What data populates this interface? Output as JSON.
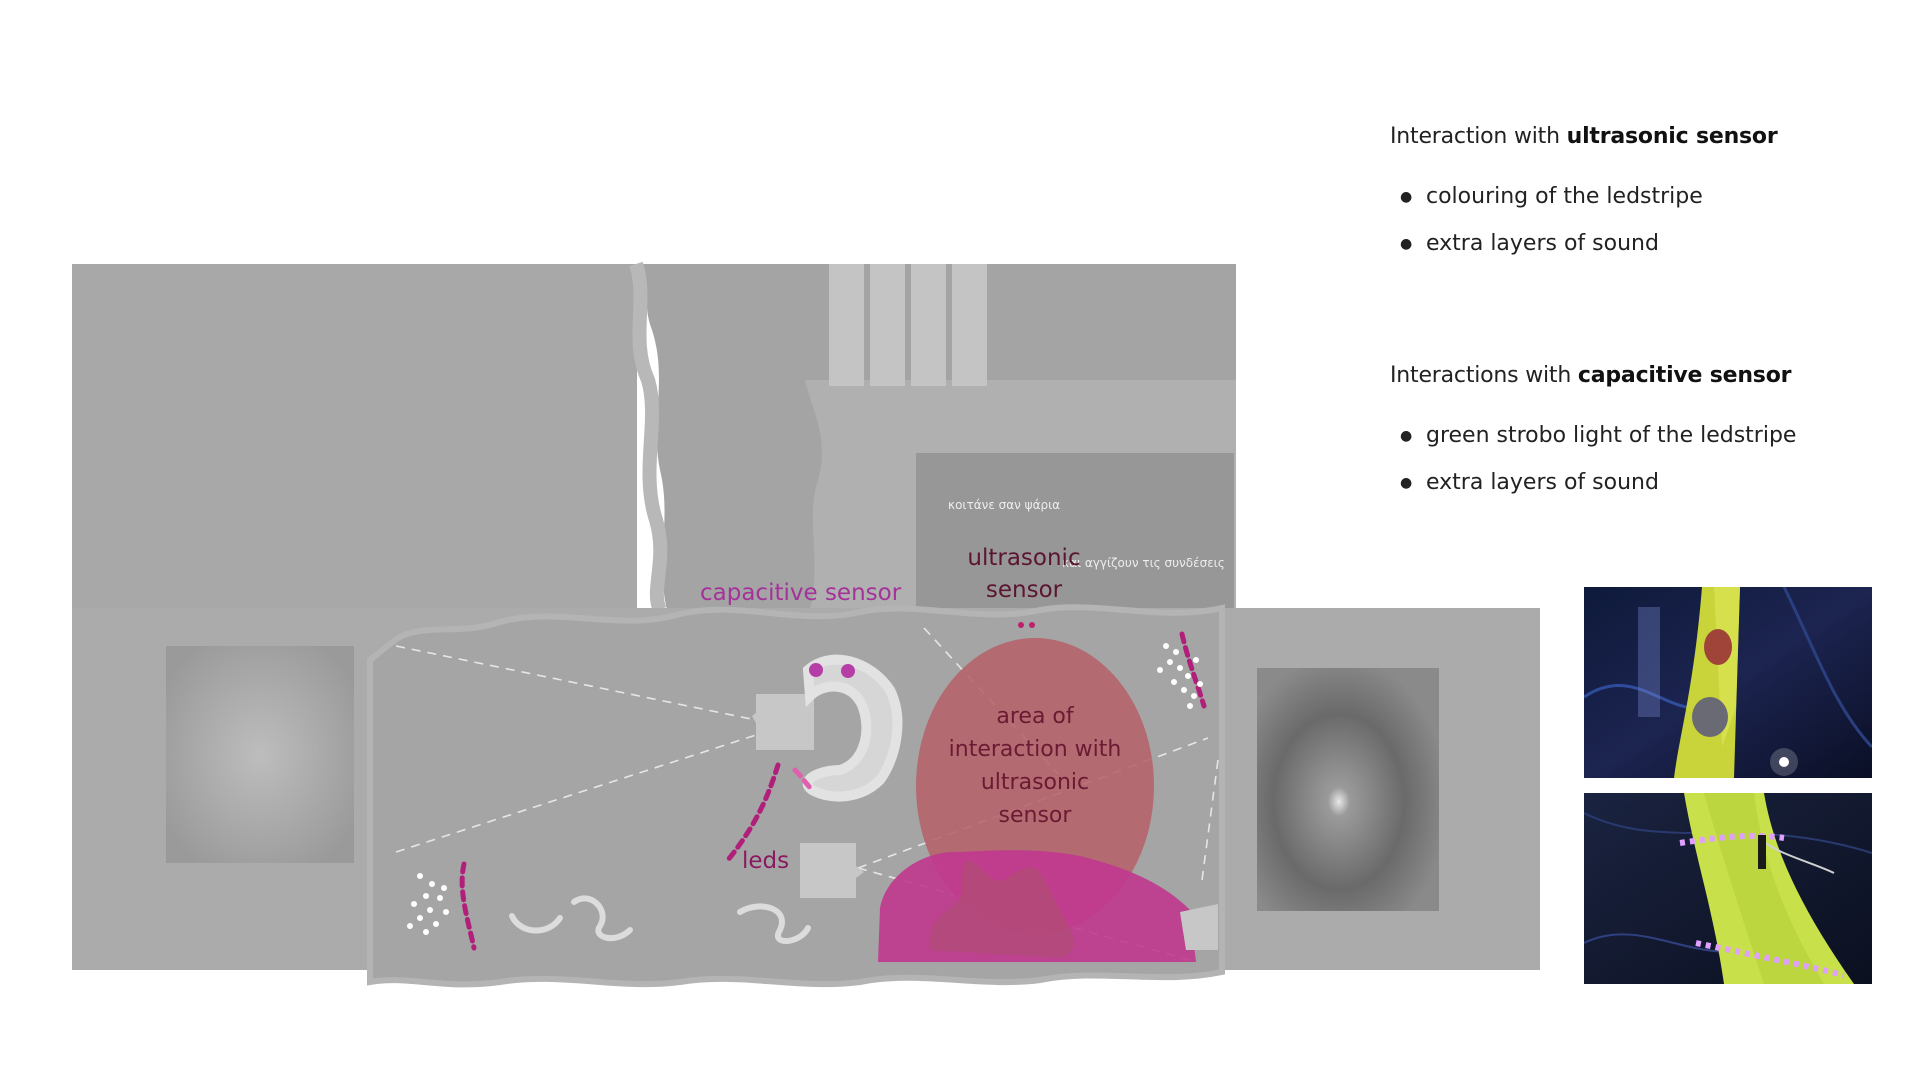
{
  "diagram": {
    "labels": {
      "capacitive_sensor": "capacitive sensor",
      "ultrasonic_sensor_line1": "ultrasonic",
      "ultrasonic_sensor_line2": "sensor",
      "area_line1": "area of",
      "area_line2": "interaction with",
      "area_line3": "ultrasonic",
      "area_line4": "sensor",
      "leds": "leds",
      "greek_note_1": "κοιτάνε σαν ψάρια",
      "greek_note_2": "και αγγίζουν τις συνδέσεις"
    },
    "colors": {
      "wall_dark": "#a7a7a7",
      "wall_light": "#b3b3b3",
      "accent_magenta": "#b0207a",
      "capacitive_purple": "#b53fa6",
      "label_dark": "#5b1530",
      "area_fill": "#b5626a",
      "audience_fill": "#c0398f"
    }
  },
  "legend": {
    "ultrasonic": {
      "heading_prefix": "Interaction with ",
      "heading_bold": "ultrasonic sensor",
      "items": [
        "colouring of the ledstripe",
        "extra layers of sound"
      ]
    },
    "capacitive": {
      "heading_prefix": "Interactions with ",
      "heading_bold": "capacitive sensor",
      "items": [
        "green strobo light of the ledstripe",
        "extra layers of sound"
      ]
    }
  },
  "photos": [
    {
      "name": "sculpture-sensors-photo",
      "icon": "photo-icon"
    },
    {
      "name": "sculpture-ledstripe-photo",
      "icon": "photo-icon"
    }
  ]
}
